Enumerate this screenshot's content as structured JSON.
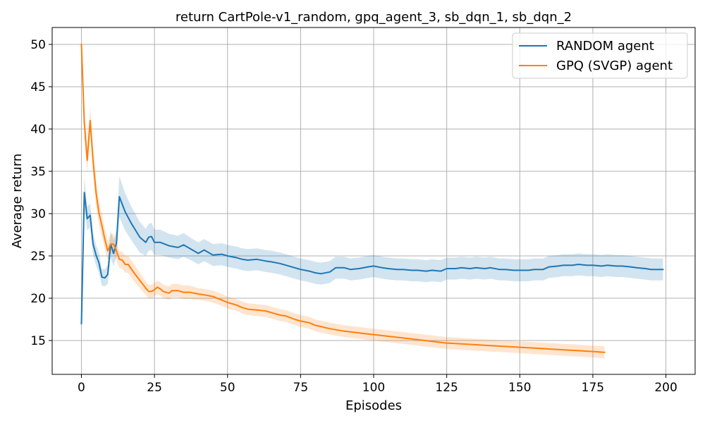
{
  "chart_data": {
    "type": "line",
    "title": "return CartPole-v1_random, gpq_agent_3, sb_dqn_1, sb_dqn_2",
    "xlabel": "Episodes",
    "ylabel": "Average return",
    "xlim": [
      -10,
      210
    ],
    "ylim": [
      11,
      52
    ],
    "xticks": [
      0,
      25,
      50,
      75,
      100,
      125,
      150,
      175,
      200
    ],
    "yticks": [
      15,
      20,
      25,
      30,
      35,
      40,
      45,
      50
    ],
    "grid": true,
    "legend_position": "top-right",
    "series": [
      {
        "name": "RANDOM agent",
        "color": "#1f77b4",
        "band_color": "#1f77b4",
        "x": [
          0,
          1,
          2,
          3,
          4,
          5,
          6,
          7,
          8,
          9,
          10,
          11,
          12,
          13,
          15,
          17,
          20,
          22,
          23,
          24,
          25,
          27,
          30,
          33,
          35,
          38,
          40,
          42,
          45,
          48,
          50,
          53,
          55,
          57,
          60,
          63,
          65,
          68,
          70,
          73,
          75,
          78,
          80,
          82,
          85,
          87,
          90,
          92,
          95,
          98,
          100,
          103,
          105,
          108,
          110,
          113,
          115,
          118,
          120,
          123,
          125,
          128,
          130,
          133,
          135,
          138,
          140,
          143,
          145,
          148,
          150,
          153,
          155,
          158,
          160,
          163,
          165,
          168,
          170,
          173,
          175,
          178,
          180,
          183,
          185,
          188,
          190,
          193,
          195,
          199
        ],
        "y": [
          17,
          32.5,
          29.4,
          29.8,
          26.4,
          25.1,
          24.2,
          22.5,
          22.4,
          22.8,
          26.4,
          25.3,
          26.5,
          32,
          30.2,
          28.9,
          27.2,
          26.6,
          27.2,
          27.3,
          26.6,
          26.6,
          26.2,
          26,
          26.3,
          25.7,
          25.3,
          25.7,
          25.1,
          25.2,
          25,
          24.8,
          24.6,
          24.5,
          24.6,
          24.4,
          24.3,
          24.1,
          23.9,
          23.6,
          23.4,
          23.2,
          23,
          22.9,
          23.1,
          23.6,
          23.6,
          23.4,
          23.5,
          23.7,
          23.8,
          23.6,
          23.5,
          23.4,
          23.4,
          23.3,
          23.3,
          23.2,
          23.3,
          23.2,
          23.5,
          23.5,
          23.6,
          23.5,
          23.6,
          23.5,
          23.6,
          23.4,
          23.4,
          23.3,
          23.3,
          23.3,
          23.4,
          23.4,
          23.7,
          23.8,
          23.9,
          23.9,
          24,
          23.9,
          23.9,
          23.8,
          23.9,
          23.8,
          23.8,
          23.7,
          23.6,
          23.5,
          23.4,
          23.4
        ],
        "band": [
          0.5,
          1.8,
          1.4,
          1.4,
          1.3,
          1.2,
          1.2,
          1,
          1,
          1.1,
          1.6,
          1.5,
          1.6,
          2.4,
          2.2,
          2,
          1.8,
          1.6,
          1.6,
          1.6,
          1.5,
          1.5,
          1.4,
          1.4,
          1.4,
          1.3,
          1.3,
          1.3,
          1.3,
          1.3,
          1.3,
          1.3,
          1.3,
          1.3,
          1.3,
          1.3,
          1.3,
          1.3,
          1.3,
          1.3,
          1.3,
          1.3,
          1.3,
          1.3,
          1.3,
          1.3,
          1.3,
          1.3,
          1.3,
          1.3,
          1.3,
          1.3,
          1.3,
          1.3,
          1.3,
          1.3,
          1.3,
          1.3,
          1.3,
          1.3,
          1.3,
          1.3,
          1.3,
          1.3,
          1.3,
          1.3,
          1.3,
          1.3,
          1.3,
          1.3,
          1.3,
          1.3,
          1.3,
          1.3,
          1.3,
          1.3,
          1.3,
          1.3,
          1.3,
          1.3,
          1.3,
          1.3,
          1.3,
          1.3,
          1.3,
          1.3,
          1.3,
          1.3,
          1.3,
          1.3
        ]
      },
      {
        "name": "GPQ (SVGP) agent",
        "color": "#ff7f0e",
        "band_color": "#ff7f0e",
        "x": [
          0,
          1,
          2,
          3,
          4,
          5,
          6,
          7,
          8,
          9,
          10,
          11,
          12,
          13,
          14,
          15,
          16,
          17,
          18,
          20,
          22,
          23,
          24,
          25,
          26,
          27,
          28,
          30,
          31,
          33,
          35,
          37,
          40,
          42,
          45,
          48,
          50,
          53,
          55,
          57,
          60,
          63,
          65,
          68,
          70,
          73,
          75,
          78,
          80,
          85,
          90,
          95,
          100,
          105,
          110,
          115,
          120,
          125,
          130,
          135,
          140,
          145,
          150,
          155,
          160,
          165,
          170,
          175,
          179
        ],
        "y": [
          50,
          40.7,
          36.3,
          41,
          36.3,
          32.5,
          30.1,
          28.6,
          27,
          25.6,
          26.4,
          26.4,
          25.6,
          24.6,
          24.5,
          24,
          24,
          23.5,
          23,
          22.1,
          21.2,
          20.8,
          20.8,
          21,
          21.3,
          21.1,
          20.8,
          20.6,
          20.9,
          20.9,
          20.7,
          20.7,
          20.5,
          20.4,
          20.2,
          19.8,
          19.5,
          19.2,
          18.9,
          18.7,
          18.6,
          18.5,
          18.3,
          18,
          17.9,
          17.5,
          17.3,
          17.1,
          16.8,
          16.4,
          16.1,
          15.9,
          15.7,
          15.5,
          15.3,
          15.1,
          14.9,
          14.7,
          14.6,
          14.5,
          14.4,
          14.3,
          14.2,
          14.1,
          14,
          13.9,
          13.8,
          13.7,
          13.6
        ],
        "band": [
          0.3,
          1.5,
          1.5,
          1.5,
          1.5,
          1.5,
          1.4,
          1.3,
          1.2,
          1.1,
          1.2,
          1.2,
          1.1,
          1,
          1,
          1,
          1,
          1,
          1,
          0.9,
          0.8,
          0.8,
          0.8,
          0.8,
          0.8,
          0.8,
          0.8,
          0.8,
          0.8,
          0.8,
          0.8,
          0.8,
          0.7,
          0.7,
          0.7,
          0.7,
          0.7,
          0.7,
          0.7,
          0.7,
          0.7,
          0.7,
          0.7,
          0.7,
          0.7,
          0.7,
          0.7,
          0.7,
          0.7,
          0.7,
          0.7,
          0.7,
          0.7,
          0.7,
          0.7,
          0.7,
          0.7,
          0.7,
          0.7,
          0.7,
          0.7,
          0.7,
          0.7,
          0.7,
          0.7,
          0.7,
          0.7,
          0.7,
          0.7
        ]
      }
    ]
  }
}
